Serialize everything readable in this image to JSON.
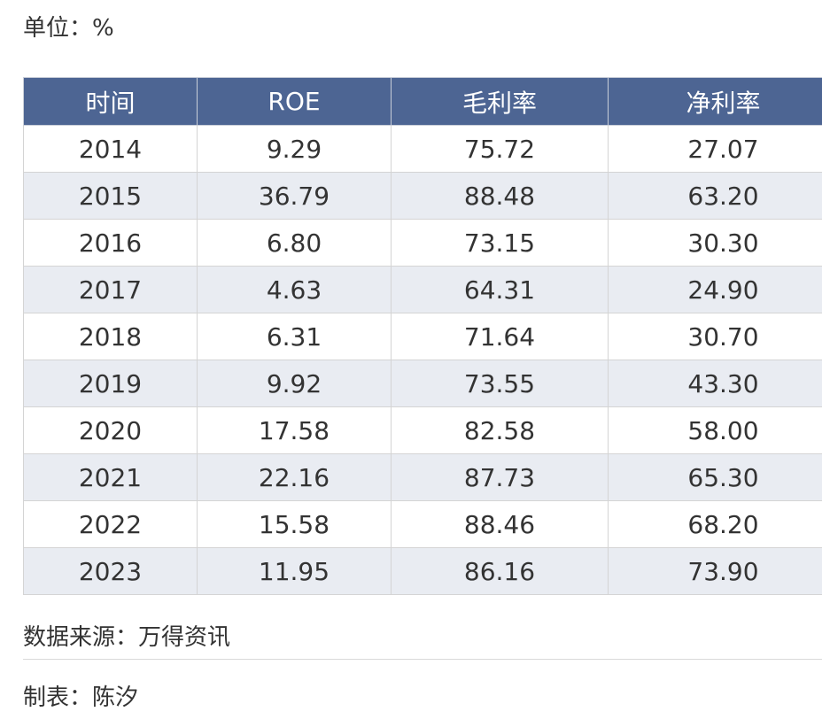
{
  "unit_label": "单位：%",
  "table": {
    "headers": [
      "时间",
      "ROE",
      "毛利率",
      "净利率"
    ],
    "rows": [
      [
        "2014",
        "9.29",
        "75.72",
        "27.07"
      ],
      [
        "2015",
        "36.79",
        "88.48",
        "63.20"
      ],
      [
        "2016",
        "6.80",
        "73.15",
        "30.30"
      ],
      [
        "2017",
        "4.63",
        "64.31",
        "24.90"
      ],
      [
        "2018",
        "6.31",
        "71.64",
        "30.70"
      ],
      [
        "2019",
        "9.92",
        "73.55",
        "43.30"
      ],
      [
        "2020",
        "17.58",
        "82.58",
        "58.00"
      ],
      [
        "2021",
        "22.16",
        "87.73",
        "65.30"
      ],
      [
        "2022",
        "15.58",
        "88.46",
        "68.20"
      ],
      [
        "2023",
        "11.95",
        "86.16",
        "73.90"
      ]
    ]
  },
  "colors": {
    "header_bg": "#4d6593",
    "stripe_bg": "#e9ecf2"
  },
  "source_label": "数据来源：万得资讯",
  "author_label": "制表：陈汐"
}
